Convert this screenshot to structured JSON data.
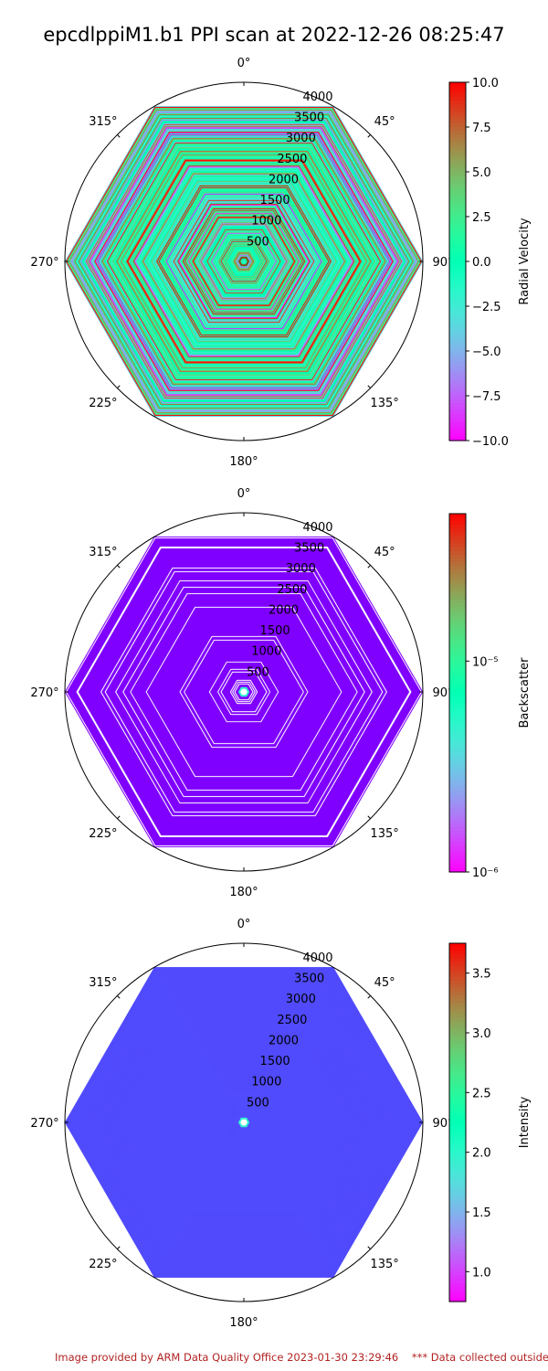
{
  "title": "epcdlppiM1.b1 PPI scan at 2022-12-26 08:25:47",
  "footer": "Image provided by ARM Data Quality Office 2023-01-30 23:29:46    *** Data collected outside",
  "chart_data": [
    {
      "type": "polar-ppi",
      "angle_ticks": [
        "0°",
        "45°",
        "90°",
        "135°",
        "180°",
        "225°",
        "270°",
        "315°"
      ],
      "radial_ticks": [
        500,
        1000,
        1500,
        2000,
        2500,
        3000,
        3500,
        4000
      ],
      "rmax": 4000,
      "colorbar": {
        "label": "Radial Velocity",
        "scale": "linear",
        "min": -10.0,
        "max": 10.0,
        "ticks": [
          "10.0",
          "7.5",
          "5.0",
          "2.5",
          "0.0",
          "−2.5",
          "−5.0",
          "−7.5",
          "−10.0"
        ]
      },
      "fill_pattern": "mixed",
      "colormap": "rainbow"
    },
    {
      "type": "polar-ppi",
      "angle_ticks": [
        "0°",
        "45°",
        "90°",
        "135°",
        "180°",
        "225°",
        "270°",
        "315°"
      ],
      "radial_ticks": [
        500,
        1000,
        1500,
        2000,
        2500,
        3000,
        3500,
        4000
      ],
      "rmax": 4000,
      "colorbar": {
        "label": "Backscatter",
        "scale": "log",
        "min": 1e-06,
        "max": 5e-05,
        "ticks": [
          "10⁻⁵",
          "10⁻⁶"
        ]
      },
      "fill_pattern": "uniform-with-gaps",
      "dominant_color": "#8000ff",
      "colormap": "rainbow"
    },
    {
      "type": "polar-ppi",
      "angle_ticks": [
        "0°",
        "45°",
        "90°",
        "135°",
        "180°",
        "225°",
        "270°",
        "315°"
      ],
      "radial_ticks": [
        500,
        1000,
        1500,
        2000,
        2500,
        3000,
        3500,
        4000
      ],
      "rmax": 4000,
      "colorbar": {
        "label": "Intensity",
        "scale": "linear",
        "min": 0.75,
        "max": 3.75,
        "ticks": [
          "3.5",
          "3.0",
          "2.5",
          "2.0",
          "1.5",
          "1.0"
        ]
      },
      "fill_pattern": "uniform",
      "dominant_color": "#504bfc",
      "colormap": "rainbow"
    }
  ]
}
